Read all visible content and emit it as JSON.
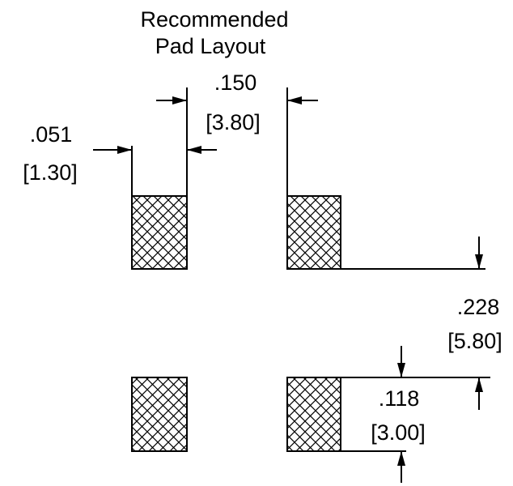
{
  "title": {
    "line1": "Recommended",
    "line2": "Pad Layout"
  },
  "dimensions": {
    "pad_width": {
      "inches": ".051",
      "mm": "[1.30]"
    },
    "pad_spacing": {
      "inches": ".150",
      "mm": "[3.80]"
    },
    "row_pitch": {
      "inches": ".228",
      "mm": "[5.80]"
    },
    "pad_height": {
      "inches": ".118",
      "mm": "[3.00]"
    }
  },
  "colors": {
    "ink": "#000000",
    "background": "#ffffff"
  }
}
